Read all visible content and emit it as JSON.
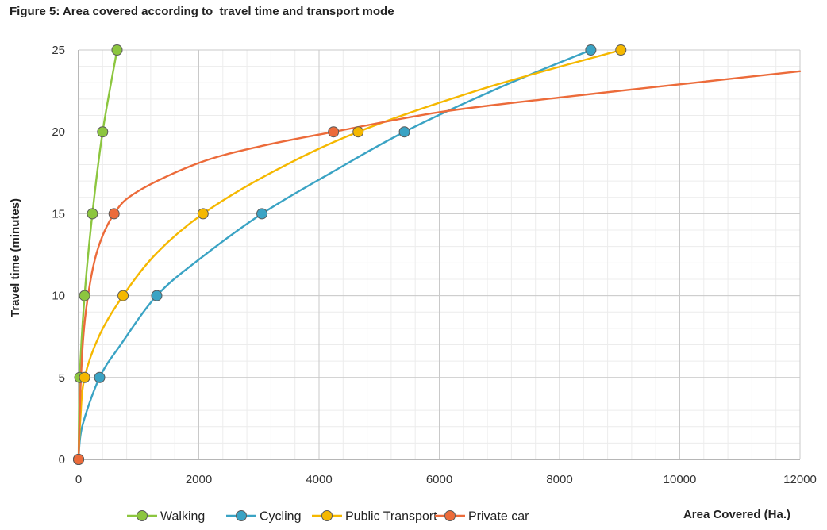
{
  "figure": {
    "title": "Figure 5: Area covered according to  travel time and transport mode"
  },
  "chart_data": {
    "type": "line",
    "xlabel": "Area Covered (Ha.)",
    "ylabel": "Travel time (minutes)",
    "xlim": [
      0,
      12000
    ],
    "ylim": [
      0,
      25
    ],
    "x_ticks": [
      0,
      2000,
      4000,
      6000,
      8000,
      10000,
      12000
    ],
    "y_ticks": [
      0,
      5,
      10,
      15,
      20,
      25
    ],
    "grid": true,
    "legend_position": "bottom",
    "series": [
      {
        "name": "Walking",
        "color": "#8cc63f",
        "marker_points": [
          [
            0,
            0
          ],
          [
            20,
            5
          ],
          [
            100,
            10
          ],
          [
            230,
            15
          ],
          [
            400,
            20
          ],
          [
            640,
            25
          ]
        ],
        "curve": [
          [
            0,
            0
          ],
          [
            20,
            5
          ],
          [
            100,
            10
          ],
          [
            230,
            15
          ],
          [
            400,
            20
          ],
          [
            640,
            25
          ]
        ]
      },
      {
        "name": "Cycling",
        "color": "#3aa3c4",
        "marker_points": [
          [
            0,
            0
          ],
          [
            350,
            5
          ],
          [
            1300,
            10
          ],
          [
            3050,
            15
          ],
          [
            5420,
            20
          ],
          [
            8520,
            25
          ]
        ],
        "curve": [
          [
            0,
            0
          ],
          [
            60,
            2
          ],
          [
            350,
            5
          ],
          [
            700,
            7
          ],
          [
            1300,
            10
          ],
          [
            2000,
            12.2
          ],
          [
            3050,
            15
          ],
          [
            4200,
            17.5
          ],
          [
            5420,
            20
          ],
          [
            7000,
            22.7
          ],
          [
            8520,
            25
          ]
        ]
      },
      {
        "name": "Public Transport",
        "color": "#f5b800",
        "marker_points": [
          [
            0,
            0
          ],
          [
            100,
            5
          ],
          [
            740,
            10
          ],
          [
            2070,
            15
          ],
          [
            4650,
            20
          ],
          [
            9020,
            25
          ]
        ],
        "curve": [
          [
            0,
            0
          ],
          [
            30,
            2.5
          ],
          [
            100,
            5
          ],
          [
            350,
            7.6
          ],
          [
            740,
            10
          ],
          [
            1300,
            12.6
          ],
          [
            2070,
            15
          ],
          [
            3200,
            17.5
          ],
          [
            4650,
            20
          ],
          [
            6700,
            22.6
          ],
          [
            9020,
            25
          ]
        ]
      },
      {
        "name": "Private car",
        "color": "#ec6b3a",
        "marker_points": [
          [
            0,
            0
          ],
          [
            590,
            15
          ],
          [
            4240,
            20
          ]
        ],
        "curve": [
          [
            0,
            0
          ],
          [
            40,
            5
          ],
          [
            120,
            9
          ],
          [
            300,
            12.6
          ],
          [
            590,
            15
          ],
          [
            1000,
            16.4
          ],
          [
            2000,
            18.1
          ],
          [
            3000,
            19.1
          ],
          [
            4240,
            20
          ],
          [
            6000,
            21.2
          ],
          [
            8000,
            22.1
          ],
          [
            10000,
            22.9
          ],
          [
            12000,
            23.7
          ]
        ]
      }
    ]
  }
}
